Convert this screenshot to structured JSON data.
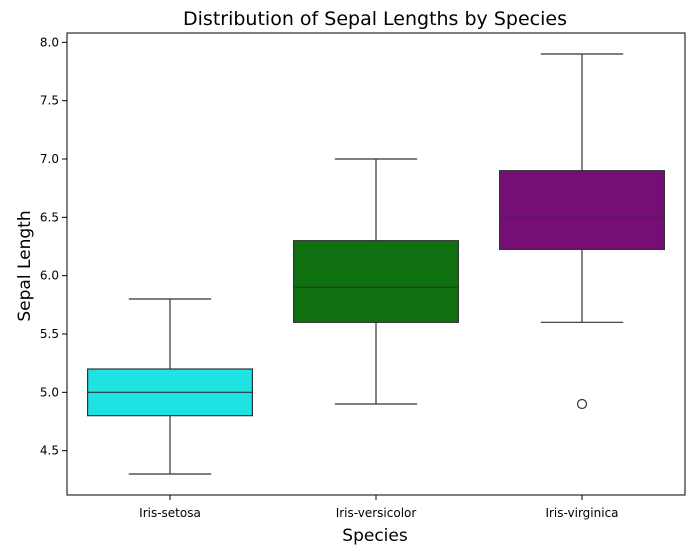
{
  "chart_data": {
    "type": "box",
    "title": "Distribution of Sepal Lengths by Species",
    "xlabel": "Species",
    "ylabel": "Sepal Length",
    "ylim": [
      4.12,
      8.08
    ],
    "yticks": [
      "4.5",
      "5.0",
      "5.5",
      "6.0",
      "6.5",
      "7.0",
      "7.5",
      "8.0"
    ],
    "grid": false,
    "categories": [
      "Iris-setosa",
      "Iris-versicolor",
      "Iris-virginica"
    ],
    "boxes": [
      {
        "category": "Iris-setosa",
        "whisker_low": 4.3,
        "q1": 4.8,
        "median": 5.0,
        "q3": 5.2,
        "whisker_high": 5.8,
        "outliers": [],
        "color": "#1fe3e3"
      },
      {
        "category": "Iris-versicolor",
        "whisker_low": 4.9,
        "q1": 5.6,
        "median": 5.9,
        "q3": 6.3,
        "whisker_high": 7.0,
        "outliers": [],
        "color": "#0e700e"
      },
      {
        "category": "Iris-virginica",
        "whisker_low": 5.6,
        "q1": 6.225,
        "median": 6.5,
        "q3": 6.9,
        "whisker_high": 7.9,
        "outliers": [
          4.9
        ],
        "color": "#750e75"
      }
    ]
  }
}
